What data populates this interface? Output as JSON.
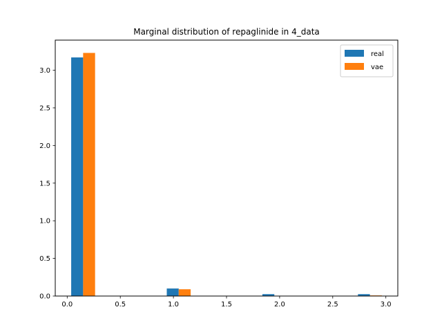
{
  "chart_data": {
    "type": "bar",
    "title": "Marginal distribution of repaglinide in 4_data",
    "xlabel": "",
    "ylabel": "",
    "xlim": [
      -0.1125,
      3.1125
    ],
    "ylim": [
      0,
      3.4
    ],
    "xticks": [
      "0.0",
      "0.5",
      "1.0",
      "1.5",
      "2.0",
      "2.5",
      "3.0"
    ],
    "xtick_values": [
      0.0,
      0.5,
      1.0,
      1.5,
      2.0,
      2.5,
      3.0
    ],
    "yticks": [
      "0.0",
      "0.5",
      "1.0",
      "1.5",
      "2.0",
      "2.5",
      "3.0"
    ],
    "ytick_values": [
      0.0,
      0.5,
      1.0,
      1.5,
      2.0,
      2.5,
      3.0
    ],
    "bin_edges": [
      0.0,
      0.15,
      0.9,
      1.05,
      1.8,
      1.95,
      2.7,
      2.85
    ],
    "series": [
      {
        "name": "real",
        "color": "#1f77b4",
        "bars": [
          {
            "x0": 0.0375,
            "x1": 0.15,
            "value": 3.17
          },
          {
            "x0": 0.9375,
            "x1": 1.05,
            "value": 0.1
          },
          {
            "x0": 1.8375,
            "x1": 1.95,
            "value": 0.025
          },
          {
            "x0": 2.7375,
            "x1": 2.85,
            "value": 0.025
          }
        ]
      },
      {
        "name": "vae",
        "color": "#ff7f0e",
        "bars": [
          {
            "x0": 0.15,
            "x1": 0.2625,
            "value": 3.23
          },
          {
            "x0": 1.05,
            "x1": 1.1625,
            "value": 0.09
          },
          {
            "x0": 2.85,
            "x1": 2.9625,
            "value": 0.008
          }
        ]
      }
    ],
    "grid": false,
    "legend": "top-right"
  }
}
